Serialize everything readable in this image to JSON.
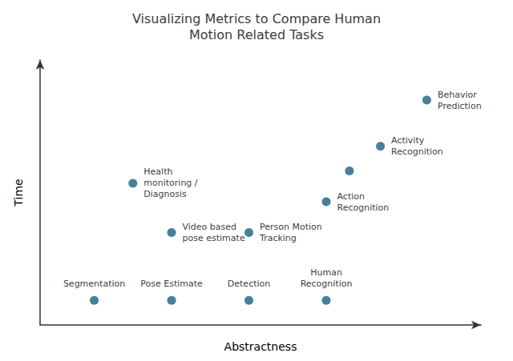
{
  "chart_data": {
    "type": "scatter",
    "title": "Visualizing Metrics to Compare Human\nMotion Related Tasks",
    "xlabel": "Abstractness",
    "ylabel": "Time",
    "x": [
      1.0,
      2.0,
      3.0,
      4.0,
      2.0,
      1.5,
      3.0,
      4.0,
      4.7,
      5.3,
      4.3
    ],
    "y": [
      0.0,
      0.0,
      0.0,
      0.0,
      2.2,
      3.8,
      2.2,
      3.2,
      5.0,
      6.5,
      4.2
    ],
    "labels": [
      "Segmentation",
      "Pose Estimate",
      "Detection",
      "Human\nRecognition",
      "Video based\npose estimate",
      "Health\nmonitoring /\nDiagnosis",
      "Person Motion\nTracking",
      "Action\nRecognition",
      "Activity\nRecognition",
      "Behavior\nPrediction",
      null
    ],
    "color": "#1a6080",
    "xlim": [
      0.3,
      6.0
    ],
    "ylim": [
      -0.8,
      7.8
    ],
    "tick_labels": false,
    "grid": false
  }
}
